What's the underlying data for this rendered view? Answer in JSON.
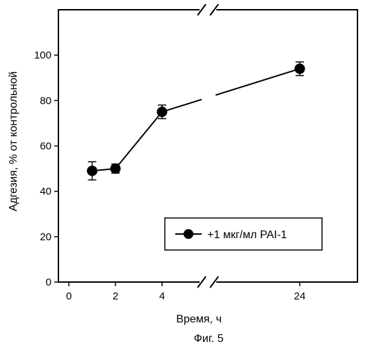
{
  "chart_data": {
    "type": "line",
    "xlabel": "Время, ч",
    "ylabel": "Адгезия, % от контрольной",
    "caption": "Фиг. 5",
    "x_ticks": [
      "0",
      "2",
      "4",
      "24"
    ],
    "y_ticks": [
      "0",
      "20",
      "40",
      "60",
      "80",
      "100"
    ],
    "ylim": [
      0,
      120
    ],
    "x_axis_break": "between 4 and 24",
    "grid": false,
    "legend_position": "bottom-right",
    "series": [
      {
        "name": "+1 мкг/мл PAI-1",
        "marker": "filled-circle",
        "color": "#000000",
        "x": [
          1,
          2,
          4,
          24
        ],
        "y": [
          49,
          50,
          75,
          94
        ],
        "error": [
          4,
          2,
          3,
          3
        ]
      }
    ]
  }
}
